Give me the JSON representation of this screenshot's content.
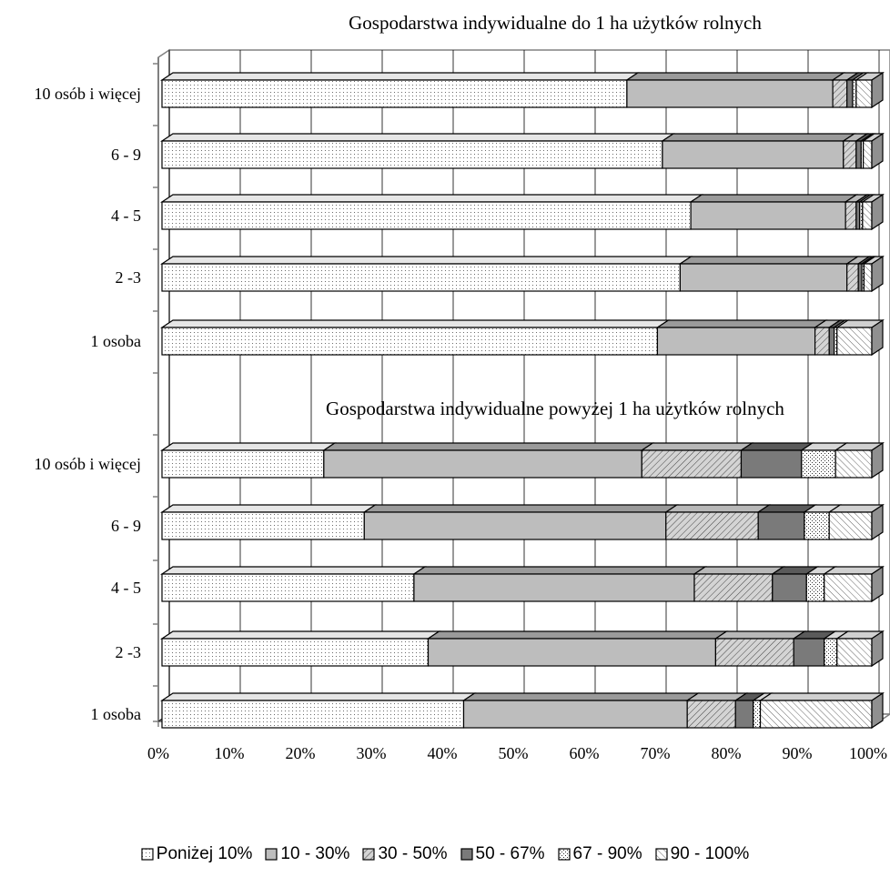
{
  "chart_data": {
    "type": "bar",
    "orientation": "horizontal",
    "stacked": "percent",
    "three_d": true,
    "grid": true,
    "legend_position": "bottom",
    "xlim": [
      0,
      100
    ],
    "x_tick_labels": [
      "0%",
      "10%",
      "20%",
      "30%",
      "40%",
      "50%",
      "60%",
      "70%",
      "80%",
      "90%",
      "100%"
    ],
    "series_names": [
      "Poniżej 10%",
      "10 - 30%",
      "30 - 50%",
      "50 - 67%",
      "67 - 90%",
      "90 - 100%"
    ],
    "panels": [
      {
        "title": "Gospodarstwa indywidualne do 1 ha użytków rolnych",
        "categories": [
          "10 osób i więcej",
          "6 - 9",
          "4 - 5",
          "2 -3",
          "1 osoba"
        ],
        "values": [
          [
            65.5,
            29.0,
            2.0,
            0.8,
            0.5,
            2.2
          ],
          [
            70.5,
            25.5,
            1.8,
            0.7,
            0.3,
            1.2
          ],
          [
            74.5,
            21.8,
            1.5,
            0.5,
            0.4,
            1.3
          ],
          [
            73.0,
            23.5,
            1.6,
            0.5,
            0.3,
            1.1
          ],
          [
            69.8,
            22.2,
            2.0,
            0.7,
            0.4,
            4.9
          ]
        ]
      },
      {
        "title": "Gospodarstwa indywidualne powyżej 1 ha użytków rolnych",
        "categories": [
          "10 osób i więcej",
          "6 - 9",
          "4 - 5",
          "2 -3",
          "1 osoba"
        ],
        "values": [
          [
            22.8,
            44.8,
            14.0,
            8.5,
            4.8,
            5.1
          ],
          [
            28.5,
            42.5,
            13.0,
            6.5,
            3.5,
            6.0
          ],
          [
            35.5,
            39.5,
            11.0,
            4.8,
            2.5,
            6.7
          ],
          [
            37.5,
            40.5,
            11.0,
            4.3,
            1.8,
            4.9
          ],
          [
            42.5,
            31.5,
            6.8,
            2.5,
            1.0,
            15.7
          ]
        ]
      }
    ]
  }
}
